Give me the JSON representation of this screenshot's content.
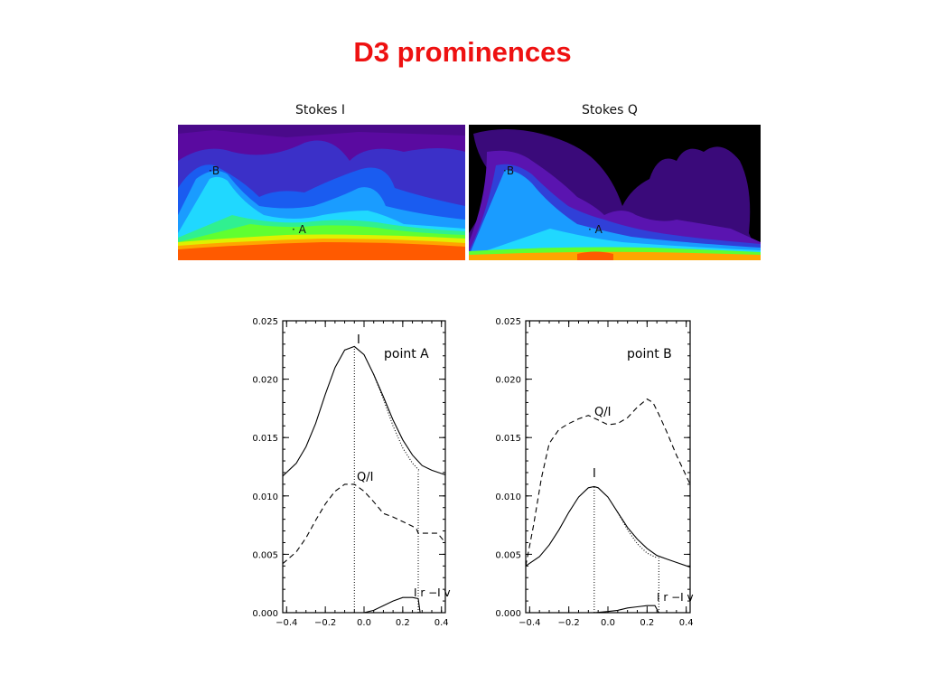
{
  "title": "D3 prominences",
  "maps": [
    {
      "caption": "Stokes I",
      "points": [
        {
          "label": "B"
        },
        {
          "label": "A"
        }
      ]
    },
    {
      "caption": "Stokes Q",
      "points": [
        {
          "label": "B"
        },
        {
          "label": "A"
        }
      ]
    }
  ],
  "colors": {
    "title": "#ee1111",
    "disk": "#ff5a00"
  },
  "chart_data": [
    {
      "type": "line",
      "annotation": "point A",
      "xlim": [
        -0.42,
        0.42
      ],
      "ylim": [
        0.0,
        0.025
      ],
      "xticks": [
        "-0.4",
        "-0.2",
        "0.0",
        "0.2",
        "0.4"
      ],
      "yticks": [
        "0.000",
        "0.005",
        "0.010",
        "0.015",
        "0.020",
        "0.025"
      ],
      "series": [
        {
          "name": "I",
          "style": "solid",
          "x": [
            -0.42,
            -0.35,
            -0.3,
            -0.25,
            -0.2,
            -0.15,
            -0.1,
            -0.05,
            0.0,
            0.05,
            0.1,
            0.15,
            0.2,
            0.25,
            0.3,
            0.35,
            0.42
          ],
          "y": [
            0.0117,
            0.0128,
            0.0142,
            0.0162,
            0.0187,
            0.021,
            0.0225,
            0.0228,
            0.0221,
            0.0204,
            0.0185,
            0.0165,
            0.0148,
            0.0135,
            0.0126,
            0.0122,
            0.0118
          ]
        },
        {
          "name": "Q/I",
          "style": "dashed",
          "x": [
            -0.42,
            -0.35,
            -0.3,
            -0.25,
            -0.2,
            -0.15,
            -0.1,
            -0.05,
            0.0,
            0.05,
            0.1,
            0.15,
            0.2,
            0.25,
            0.27,
            0.28,
            0.3,
            0.35,
            0.38,
            0.42
          ],
          "y": [
            0.0042,
            0.0052,
            0.0064,
            0.0079,
            0.0093,
            0.0104,
            0.011,
            0.011,
            0.0104,
            0.0095,
            0.0085,
            0.0082,
            0.0078,
            0.0074,
            0.0072,
            0.0068,
            0.0068,
            0.0068,
            0.0068,
            0.006
          ]
        },
        {
          "name": "I_r-I_v",
          "style": "solid",
          "x": [
            0.0,
            0.05,
            0.1,
            0.15,
            0.2,
            0.25,
            0.28,
            0.29
          ],
          "y": [
            0.0,
            0.0002,
            0.0006,
            0.001,
            0.0013,
            0.0013,
            0.0012,
            0.0
          ]
        },
        {
          "name": "I-fit",
          "style": "dotted",
          "x": [
            0.05,
            0.1,
            0.15,
            0.2,
            0.25,
            0.29
          ],
          "y": [
            0.0204,
            0.0183,
            0.016,
            0.0141,
            0.0128,
            0.0121
          ]
        }
      ],
      "vlines": [
        -0.05,
        0.28
      ],
      "labels": {
        "I": "I",
        "QI": "Q/I",
        "diff": "I r −I v"
      }
    },
    {
      "type": "line",
      "annotation": "point B",
      "xlim": [
        -0.42,
        0.42
      ],
      "ylim": [
        0.0,
        0.025
      ],
      "xticks": [
        "-0.4",
        "-0.2",
        "0.0",
        "0.2",
        "0.4"
      ],
      "yticks": [
        "0.000",
        "0.005",
        "0.010",
        "0.015",
        "0.020",
        "0.025"
      ],
      "series": [
        {
          "name": "I",
          "style": "solid",
          "x": [
            -0.42,
            -0.35,
            -0.3,
            -0.25,
            -0.2,
            -0.15,
            -0.1,
            -0.07,
            -0.05,
            0.0,
            0.05,
            0.1,
            0.15,
            0.2,
            0.25,
            0.3,
            0.35,
            0.42
          ],
          "y": [
            0.004,
            0.0048,
            0.0058,
            0.0071,
            0.0086,
            0.0099,
            0.0107,
            0.0108,
            0.0107,
            0.0099,
            0.0086,
            0.0073,
            0.0063,
            0.0055,
            0.0049,
            0.0046,
            0.0043,
            0.0039
          ]
        },
        {
          "name": "Q/I",
          "style": "dashed",
          "x": [
            -0.42,
            -0.38,
            -0.34,
            -0.3,
            -0.25,
            -0.2,
            -0.15,
            -0.1,
            -0.05,
            0.0,
            0.05,
            0.1,
            0.15,
            0.2,
            0.23,
            0.26,
            0.3,
            0.35,
            0.42
          ],
          "y": [
            0.004,
            0.0075,
            0.0115,
            0.0145,
            0.0157,
            0.0162,
            0.0166,
            0.0169,
            0.0165,
            0.0161,
            0.0162,
            0.0167,
            0.0176,
            0.0183,
            0.018,
            0.017,
            0.0155,
            0.0135,
            0.011
          ]
        },
        {
          "name": "I_r-I_v",
          "style": "solid",
          "x": [
            -0.07,
            0.0,
            0.05,
            0.1,
            0.15,
            0.2,
            0.24,
            0.26
          ],
          "y": [
            0.0,
            0.0001,
            0.0002,
            0.0004,
            0.0005,
            0.0006,
            0.0006,
            0.0
          ]
        },
        {
          "name": "I-fit",
          "style": "dotted",
          "x": [
            0.05,
            0.1,
            0.15,
            0.2,
            0.25
          ],
          "y": [
            0.0086,
            0.0071,
            0.0059,
            0.0051,
            0.0047
          ]
        }
      ],
      "vlines": [
        -0.07,
        0.26
      ],
      "labels": {
        "I": "I",
        "QI": "Q/I",
        "diff": "I r −I v"
      }
    }
  ]
}
